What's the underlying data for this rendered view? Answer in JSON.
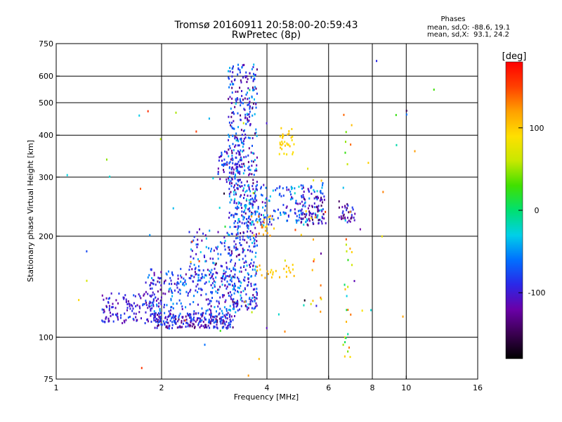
{
  "chart_data": {
    "type": "scatter",
    "title": "Tromsø 20160911 20:58:00-20:59:43",
    "subtitle": "RwPretec (8p)",
    "xlabel": "Frequency [MHz]",
    "ylabel": "Stationary phase Virtual Height [km]",
    "x_scale": "log",
    "y_scale": "log",
    "xlim": [
      1,
      16
    ],
    "ylim": [
      75,
      750
    ],
    "x_ticks": [
      {
        "value": 1,
        "label": "1"
      },
      {
        "value": 2,
        "label": "2"
      },
      {
        "value": 4,
        "label": "4"
      },
      {
        "value": 6,
        "label": "6"
      },
      {
        "value": 8,
        "label": "8"
      },
      {
        "value": 10,
        "label": "10"
      },
      {
        "value": 16,
        "label": "16"
      }
    ],
    "y_ticks": [
      {
        "value": 75,
        "label": "75"
      },
      {
        "value": 100,
        "label": "100"
      },
      {
        "value": 200,
        "label": "200"
      },
      {
        "value": 300,
        "label": "300"
      },
      {
        "value": 400,
        "label": "400"
      },
      {
        "value": 500,
        "label": "500"
      },
      {
        "value": 600,
        "label": "600"
      },
      {
        "value": 750,
        "label": "750"
      }
    ],
    "x_grid": [
      2,
      4,
      6,
      8,
      10
    ],
    "y_grid": [
      100,
      200,
      300,
      400,
      500,
      600
    ],
    "grid": true,
    "stats": {
      "heading": "Phases",
      "line1": "mean, sd,O: -88.6, 19.1",
      "line2": "mean, sd,X:  93.1, 24.2"
    },
    "colorbar": {
      "label": "[deg]",
      "range": [
        -180,
        180
      ],
      "ticks": [
        {
          "value": 100,
          "label": "100"
        },
        {
          "value": 0,
          "label": "0"
        },
        {
          "value": -100,
          "label": "-100"
        }
      ],
      "colors": [
        "#000000",
        "#3a0050",
        "#6a00a8",
        "#2a28e8",
        "#0070ff",
        "#00d0e8",
        "#00e070",
        "#40e000",
        "#c8e800",
        "#ffe000",
        "#ffa000",
        "#ff4000",
        "#ff0000"
      ]
    },
    "series": [
      {
        "freq_range": [
          1.9,
          3.2
        ],
        "height_range": [
          106,
          118
        ],
        "phase_range": [
          -140,
          -60
        ],
        "count": 240
      },
      {
        "freq_range": [
          1.35,
          2.0
        ],
        "height_range": [
          110,
          135
        ],
        "phase_range": [
          -130,
          -70
        ],
        "count": 130
      },
      {
        "freq_range": [
          1.8,
          3.3
        ],
        "height_range": [
          115,
          160
        ],
        "phase_range": [
          -130,
          -40
        ],
        "count": 260
      },
      {
        "freq_range": [
          2.4,
          3.1
        ],
        "height_range": [
          140,
          210
        ],
        "phase_range": [
          -120,
          -30
        ],
        "count": 90
      },
      {
        "freq_range": [
          3.1,
          3.75
        ],
        "height_range": [
          120,
          650
        ],
        "phase_range": [
          -140,
          -30
        ],
        "count": 560
      },
      {
        "freq_range": [
          2.9,
          3.4
        ],
        "height_range": [
          290,
          360
        ],
        "phase_range": [
          -130,
          -60
        ],
        "count": 70
      },
      {
        "freq_range": [
          3.2,
          5.8
        ],
        "height_range": [
          215,
          285
        ],
        "phase_range": [
          -120,
          -20
        ],
        "count": 260
      },
      {
        "freq_range": [
          5.0,
          5.9
        ],
        "height_range": [
          215,
          265
        ],
        "phase_range": [
          -150,
          -90
        ],
        "count": 50
      },
      {
        "freq_range": [
          6.4,
          7.2
        ],
        "height_range": [
          220,
          255
        ],
        "phase_range": [
          -150,
          -80
        ],
        "count": 35
      },
      {
        "freq_range": [
          4.3,
          4.8
        ],
        "height_range": [
          350,
          420
        ],
        "phase_range": [
          85,
          110
        ],
        "count": 35
      },
      {
        "freq_range": [
          3.7,
          4.8
        ],
        "height_range": [
          150,
          165
        ],
        "phase_range": [
          90,
          120
        ],
        "count": 25
      },
      {
        "freq_range": [
          3.6,
          4.2
        ],
        "height_range": [
          200,
          230
        ],
        "phase_range": [
          100,
          140
        ],
        "count": 20
      },
      {
        "freq_range": [
          6.6,
          7.0
        ],
        "height_range": [
          80,
          500
        ],
        "phase_range": [
          -40,
          150
        ],
        "count": 30
      },
      {
        "freq_range": [
          5.3,
          6.0
        ],
        "height_range": [
          110,
          300
        ],
        "phase_range": [
          60,
          160
        ],
        "count": 15
      },
      {
        "freq_range": [
          1.05,
          12.0
        ],
        "height_range": [
          76,
          700
        ],
        "phase_range": [
          -170,
          170
        ],
        "count": 70
      }
    ]
  }
}
